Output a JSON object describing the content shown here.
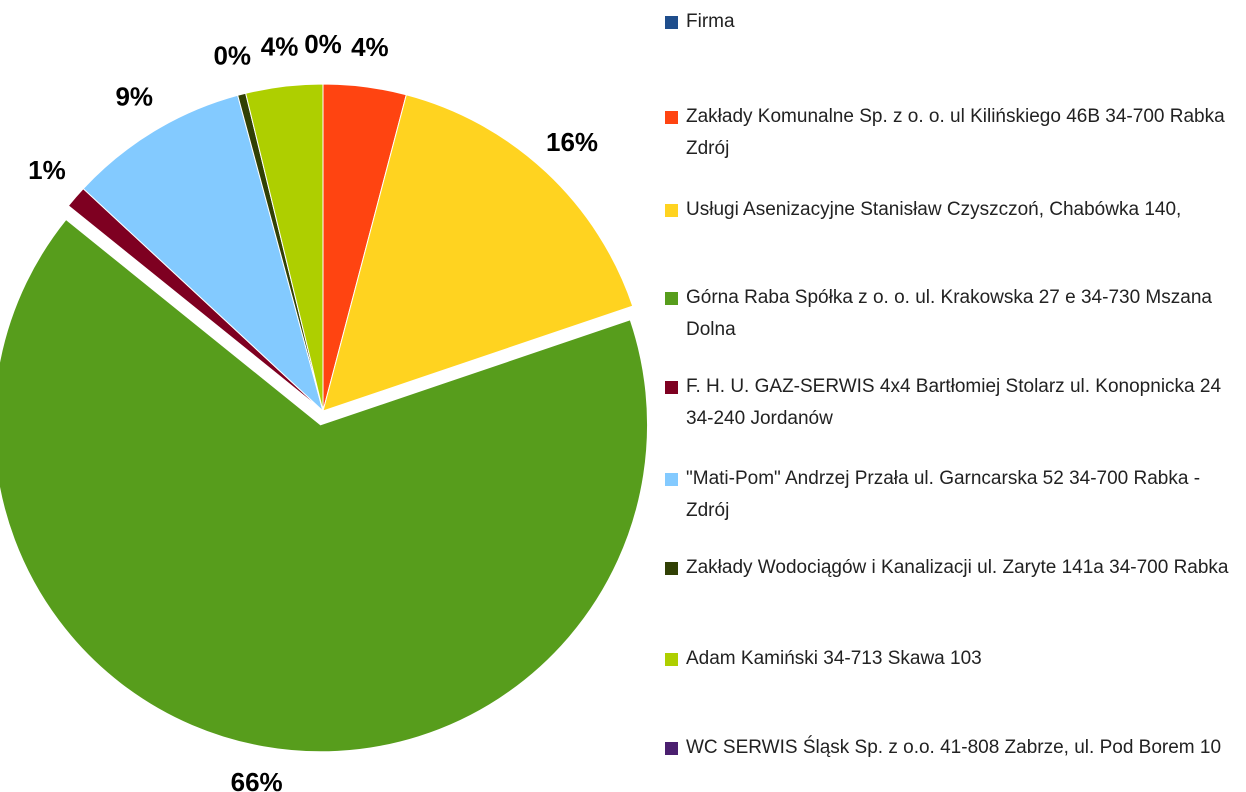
{
  "chart_data": {
    "type": "pie",
    "series": [
      {
        "name": "Firma",
        "color": "#1f4e8c"
      },
      {
        "name": "Zakłady Komunalne Sp. z o. o. ul Kilińskiego 46B 34-700 Rabka Zdrój",
        "color": "#ff4411"
      },
      {
        "name": "Usługi Asenizacyjne  Stanisław Czyszczoń, Chabówka 140,",
        "color": "#ffd320"
      },
      {
        "name": "Górna Raba Spółka z o. o. ul. Krakowska 27 e 34-730 Mszana Dolna",
        "color": "#579d1c"
      },
      {
        "name": "F. H. U. GAZ-SERWIS 4x4 Bartłomiej Stolarz ul. Konopnicka 24 34-240 Jordanów",
        "color": "#7e0021"
      },
      {
        "name": "\"Mati-Pom\" Andrzej Przała ul. Garncarska 52 34-700 Rabka - Zdrój",
        "color": "#83caff"
      },
      {
        "name": "Zakłady Wodociągów i Kanalizacji ul. Zaryte 141a 34-700 Rabka",
        "color": "#314004"
      },
      {
        "name": "Adam Kamiński 34-713 Skawa 103",
        "color": "#aecf00"
      },
      {
        "name": "WC SERWIS Śląsk Sp. z o.o. 41-808 Zabrze, ul. Pod Borem 10",
        "color": "#4b1f6f"
      }
    ],
    "values": [
      0,
      4.1,
      15.7,
      66,
      1.1,
      8.9,
      0.4,
      3.8,
      0
    ],
    "value_labels": [
      "0%",
      "4%",
      "16%",
      "66%",
      "1%",
      "9%",
      "0%",
      "4%",
      null
    ],
    "exploded": [
      3
    ]
  }
}
